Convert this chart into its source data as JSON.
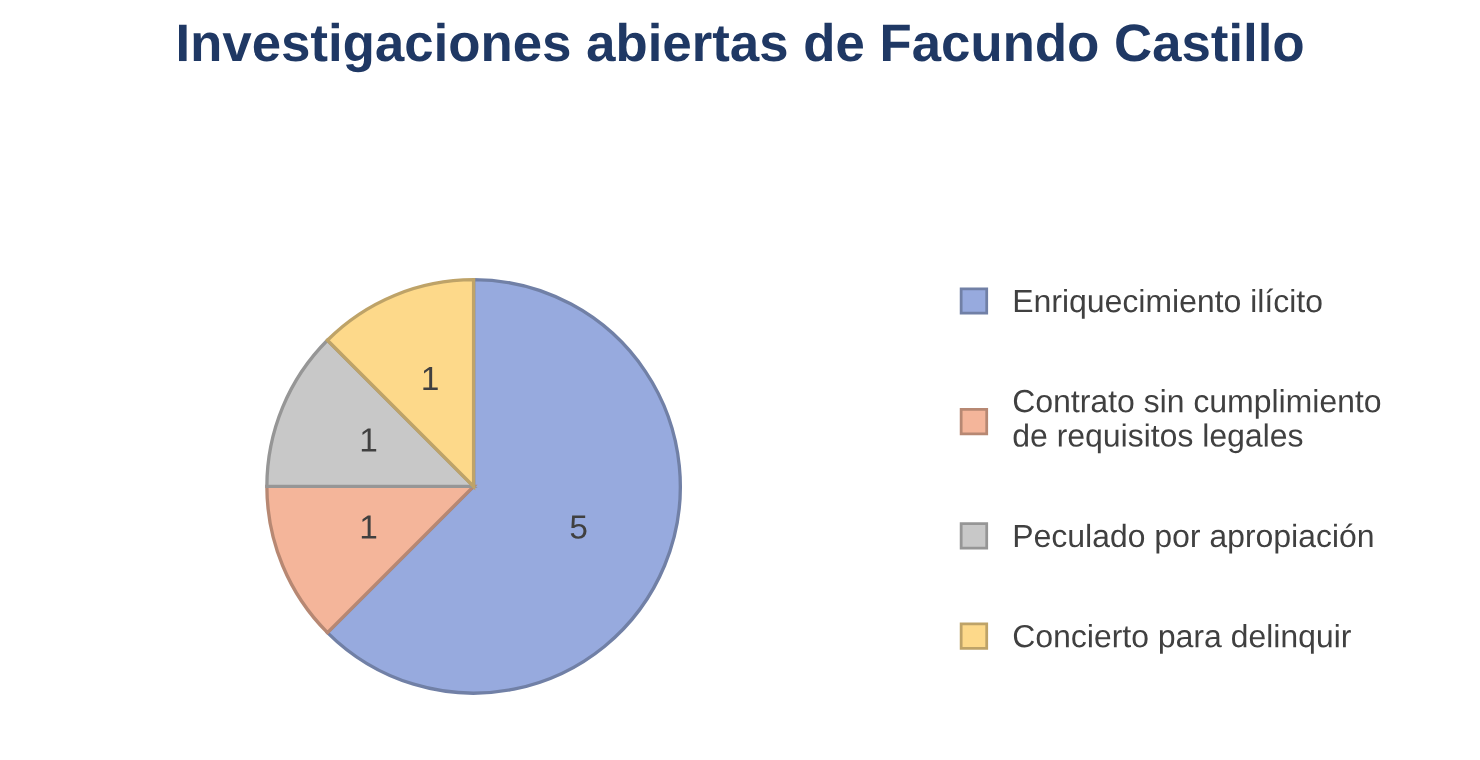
{
  "chart_data": {
    "type": "pie",
    "title": "Investigaciones abiertas de Facundo Castillo",
    "categories": [
      "Enriquecimiento ilícito",
      "Contrato sin cumplimiento de requisitos legales",
      "Peculado por apropiación",
      "Concierto para delinquir"
    ],
    "values": [
      5,
      1,
      1,
      1
    ],
    "colors": [
      "#97aade",
      "#f4b59a",
      "#c8c8c8",
      "#fdd98a"
    ],
    "data_labels": true,
    "legend": "right"
  }
}
